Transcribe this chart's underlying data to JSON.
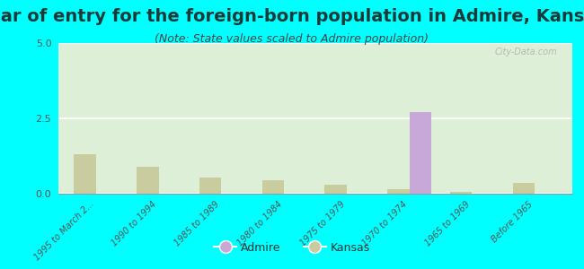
{
  "title": "Year of entry for the foreign-born population in Admire, Kansas",
  "subtitle": "(Note: State values scaled to Admire population)",
  "categories": [
    "1995 to March 2...",
    "1990 to 1994",
    "1985 to 1989",
    "1980 to 1984",
    "1975 to 1979",
    "1970 to 1974",
    "1965 to 1969",
    "Before 1965"
  ],
  "admire_values": [
    0,
    0,
    0,
    0,
    0,
    2.7,
    0,
    0
  ],
  "kansas_values": [
    1.3,
    0.9,
    0.55,
    0.45,
    0.3,
    0.15,
    0.05,
    0.35
  ],
  "admire_color": "#c8a8d8",
  "kansas_color": "#c8cc9f",
  "ylim": [
    0,
    5
  ],
  "yticks": [
    0,
    2.5,
    5
  ],
  "background_color": "#00ffff",
  "bar_width": 0.35,
  "watermark": "City-Data.com",
  "title_fontsize": 14,
  "subtitle_fontsize": 9,
  "title_color": "#1a3a3a",
  "subtitle_color": "#444444"
}
